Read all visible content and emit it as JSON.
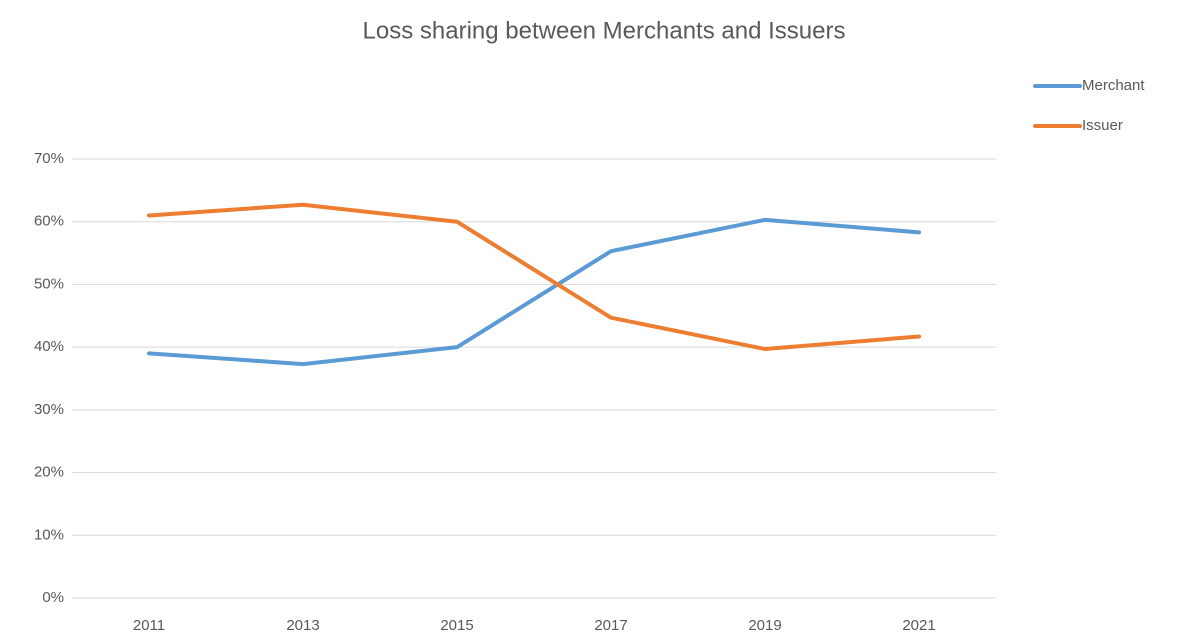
{
  "chart_data": {
    "type": "line",
    "title": "Loss sharing between Merchants and Issuers",
    "categories": [
      "2011",
      "2013",
      "2015",
      "2017",
      "2019",
      "2021"
    ],
    "series": [
      {
        "name": "Merchant",
        "color": "#5b9bd5",
        "values": [
          39,
          37.3,
          40,
          55.3,
          60.3,
          58.3
        ]
      },
      {
        "name": "Issuer",
        "color": "#ed7d31",
        "values": [
          61,
          62.7,
          60,
          44.7,
          39.7,
          41.7
        ]
      }
    ],
    "ylim": [
      0,
      70
    ],
    "yticks": [
      {
        "value": 0,
        "label": "0%"
      },
      {
        "value": 10,
        "label": "10%"
      },
      {
        "value": 20,
        "label": "20%"
      },
      {
        "value": 30,
        "label": "30%"
      },
      {
        "value": 40,
        "label": "40%"
      },
      {
        "value": 50,
        "label": "50%"
      },
      {
        "value": 60,
        "label": "60%"
      },
      {
        "value": 70,
        "label": "70%"
      }
    ],
    "grid": true,
    "legend": "top-right"
  }
}
